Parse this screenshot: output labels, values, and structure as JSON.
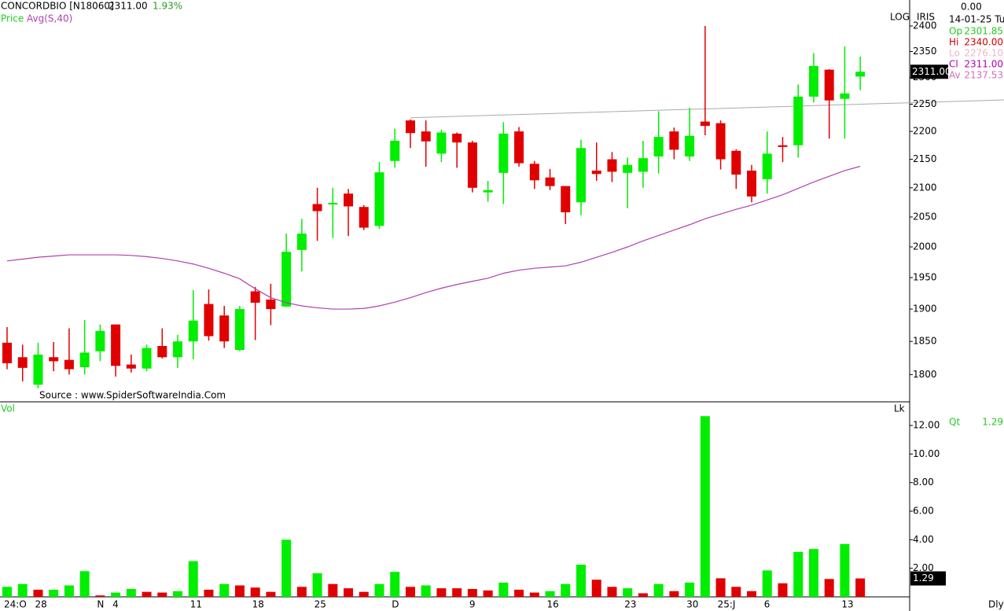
{
  "chart_data": {
    "type": "candlestick",
    "header": {
      "symbol": "CONCORDBIO [N18060]",
      "last": "2311.00",
      "change": "1.93%",
      "price_legend": "Price",
      "scale_mode": "LOG",
      "tool": "IRIS",
      "source": "Source : www.SpiderSoftwareIndia.Com",
      "top_value": "0.00",
      "date": "14-01-25 Tu",
      "interval": "Dly"
    },
    "info": [
      {
        "label": "Op",
        "value": "2301.85",
        "color": "#22cc22"
      },
      {
        "label": "Hi",
        "value": "2340.00",
        "color": "#cc0000"
      },
      {
        "label": "Lo",
        "value": "2276.10",
        "color": "#e8b8c8"
      },
      {
        "label": "Cl",
        "value": "2311.00",
        "color": "#b000b0"
      },
      {
        "label": "Av",
        "value": "2137.53",
        "color": "#d070c0"
      }
    ],
    "last_price_label": "2311.00",
    "categories": [
      "24:O",
      null,
      "28",
      null,
      null,
      null,
      "N",
      "4",
      null,
      null,
      null,
      null,
      "11",
      null,
      null,
      null,
      "18",
      null,
      null,
      null,
      "25",
      null,
      null,
      null,
      null,
      "D",
      null,
      null,
      null,
      null,
      "9",
      null,
      null,
      null,
      null,
      "16",
      null,
      null,
      null,
      null,
      "23",
      null,
      null,
      null,
      "30",
      null,
      "25:J",
      null,
      null,
      "6",
      null,
      null,
      null,
      null,
      "13",
      null
    ],
    "open": [
      1848,
      1826,
      1785,
      1826,
      1822,
      1811,
      1835,
      1876,
      1815,
      1809,
      1843,
      1826,
      1850,
      1908,
      1890,
      1837,
      1928,
      1915,
      1904,
      1995,
      2072,
      2072,
      2090,
      2067,
      2035,
      2147,
      2220,
      2200,
      2160,
      2196,
      2180,
      2092,
      2126,
      2200,
      2142,
      2118,
      2103,
      2075,
      2130,
      2150,
      2126,
      2128,
      2155,
      2200,
      2155,
      2218,
      2215,
      2165,
      2130,
      2115,
      2175,
      2175,
      2264,
      2315,
      2260,
      2301.85
    ],
    "high": [
      1872,
      1845,
      1848,
      1849,
      1870,
      1883,
      1876,
      1876,
      1830,
      1845,
      1870,
      1860,
      1930,
      1931,
      1905,
      1905,
      1935,
      1940,
      2022,
      2047,
      2100,
      2100,
      2098,
      2070,
      2145,
      2205,
      2222,
      2220,
      2203,
      2198,
      2183,
      2112,
      2217,
      2208,
      2147,
      2133,
      2103,
      2185,
      2180,
      2163,
      2153,
      2183,
      2237,
      2207,
      2243,
      2400,
      2220,
      2168,
      2140,
      2200,
      2190,
      2287,
      2347,
      2316,
      2360,
      2340
    ],
    "low": [
      1808,
      1790,
      1780,
      1805,
      1800,
      1800,
      1820,
      1797,
      1803,
      1805,
      1824,
      1810,
      1823,
      1851,
      1840,
      1835,
      1852,
      1875,
      1903,
      1960,
      2010,
      2015,
      2018,
      2028,
      2030,
      2135,
      2170,
      2137,
      2145,
      2135,
      2092,
      2076,
      2072,
      2137,
      2098,
      2096,
      2038,
      2053,
      2112,
      2110,
      2065,
      2100,
      2125,
      2150,
      2147,
      2193,
      2132,
      2098,
      2075,
      2090,
      2145,
      2153,
      2253,
      2187,
      2187,
      2276.1
    ],
    "close": [
      1817,
      1810,
      1830,
      1820,
      1808,
      1833,
      1866,
      1813,
      1809,
      1840,
      1826,
      1850,
      1882,
      1858,
      1850,
      1900,
      1910,
      1900,
      1992,
      2022,
      2060,
      2074,
      2068,
      2032,
      2127,
      2183,
      2197,
      2182,
      2198,
      2180,
      2100,
      2096,
      2196,
      2143,
      2113,
      2103,
      2058,
      2170,
      2124,
      2128,
      2140,
      2152,
      2190,
      2167,
      2192,
      2210,
      2150,
      2123,
      2085,
      2160,
      2172,
      2264,
      2322,
      2257,
      2270,
      2311
    ],
    "up_color": "#00ee00",
    "down_color": "#e00000",
    "ma": {
      "name": "Avg(S,40)",
      "color": "#b040b0",
      "values": [
        1977,
        1980,
        1983,
        1985,
        1987,
        1987,
        1987,
        1987,
        1986,
        1984,
        1981,
        1977,
        1972,
        1965,
        1957,
        1948,
        1932,
        1918,
        1910,
        1905,
        1902,
        1900,
        1900,
        1901,
        1905,
        1911,
        1918,
        1926,
        1933,
        1939,
        1944,
        1949,
        1957,
        1962,
        1965,
        1967,
        1969,
        1975,
        1983,
        1991,
        2000,
        2010,
        2019,
        2028,
        2037,
        2047,
        2055,
        2063,
        2070,
        2079,
        2088,
        2099,
        2110,
        2120,
        2130,
        2137.53
      ]
    },
    "trendline": {
      "x": [
        26,
        64.3
      ],
      "values": [
        2225,
        2258
      ],
      "color": "#aaaaaa"
    },
    "log_scale": true,
    "ylim": [
      1760,
      2452
    ],
    "yticks": [
      1800,
      1850,
      1900,
      1950,
      2000,
      2050,
      2100,
      2150,
      2200,
      2250,
      2300,
      2350,
      2400
    ],
    "volume": {
      "name": "Vol",
      "unit": "Lk",
      "qty_label": "Qt",
      "values": [
        0.7,
        0.9,
        0.5,
        0.5,
        0.8,
        1.8,
        0.1,
        0.3,
        0.55,
        0.35,
        0.3,
        0.4,
        2.5,
        0.5,
        0.9,
        0.8,
        0.65,
        0.35,
        4.0,
        0.7,
        1.65,
        0.9,
        0.6,
        0.35,
        0.9,
        1.75,
        0.7,
        0.8,
        0.6,
        0.6,
        0.55,
        0.45,
        1.0,
        0.5,
        0.3,
        0.4,
        0.9,
        2.25,
        1.2,
        0.7,
        0.6,
        0.25,
        0.9,
        0.4,
        1.0,
        12.65,
        1.3,
        0.7,
        0.4,
        1.85,
        0.95,
        3.15,
        3.35,
        1.25,
        3.7,
        1.29
      ],
      "colors": [
        "#00ee00",
        "#00ee00",
        "#e00000",
        "#00ee00",
        "#00ee00",
        "#00ee00",
        "#e00000",
        "#00ee00",
        "#00ee00",
        "#e00000",
        "#e00000",
        "#00ee00",
        "#00ee00",
        "#e00000",
        "#00ee00",
        "#e00000",
        "#e00000",
        "#e00000",
        "#00ee00",
        "#e00000",
        "#00ee00",
        "#e00000",
        "#e00000",
        "#e00000",
        "#00ee00",
        "#00ee00",
        "#e00000",
        "#00ee00",
        "#e00000",
        "#e00000",
        "#e00000",
        "#e00000",
        "#00ee00",
        "#e00000",
        "#e00000",
        "#00ee00",
        "#00ee00",
        "#00ee00",
        "#e00000",
        "#e00000",
        "#00ee00",
        "#e00000",
        "#00ee00",
        "#e00000",
        "#00ee00",
        "#00ee00",
        "#e00000",
        "#e00000",
        "#e00000",
        "#00ee00",
        "#e00000",
        "#00ee00",
        "#00ee00",
        "#e00000",
        "#00ee00",
        "#e00000"
      ],
      "ylim": [
        0,
        13.6
      ],
      "yticks": [
        {
          "value": 2,
          "label": "2.00"
        },
        {
          "value": 4,
          "label": "4.00"
        },
        {
          "value": 6,
          "label": "6.00"
        },
        {
          "value": 8,
          "label": "8.00"
        },
        {
          "value": 10,
          "label": "10.00"
        },
        {
          "value": 12,
          "label": "12.00"
        }
      ]
    }
  }
}
